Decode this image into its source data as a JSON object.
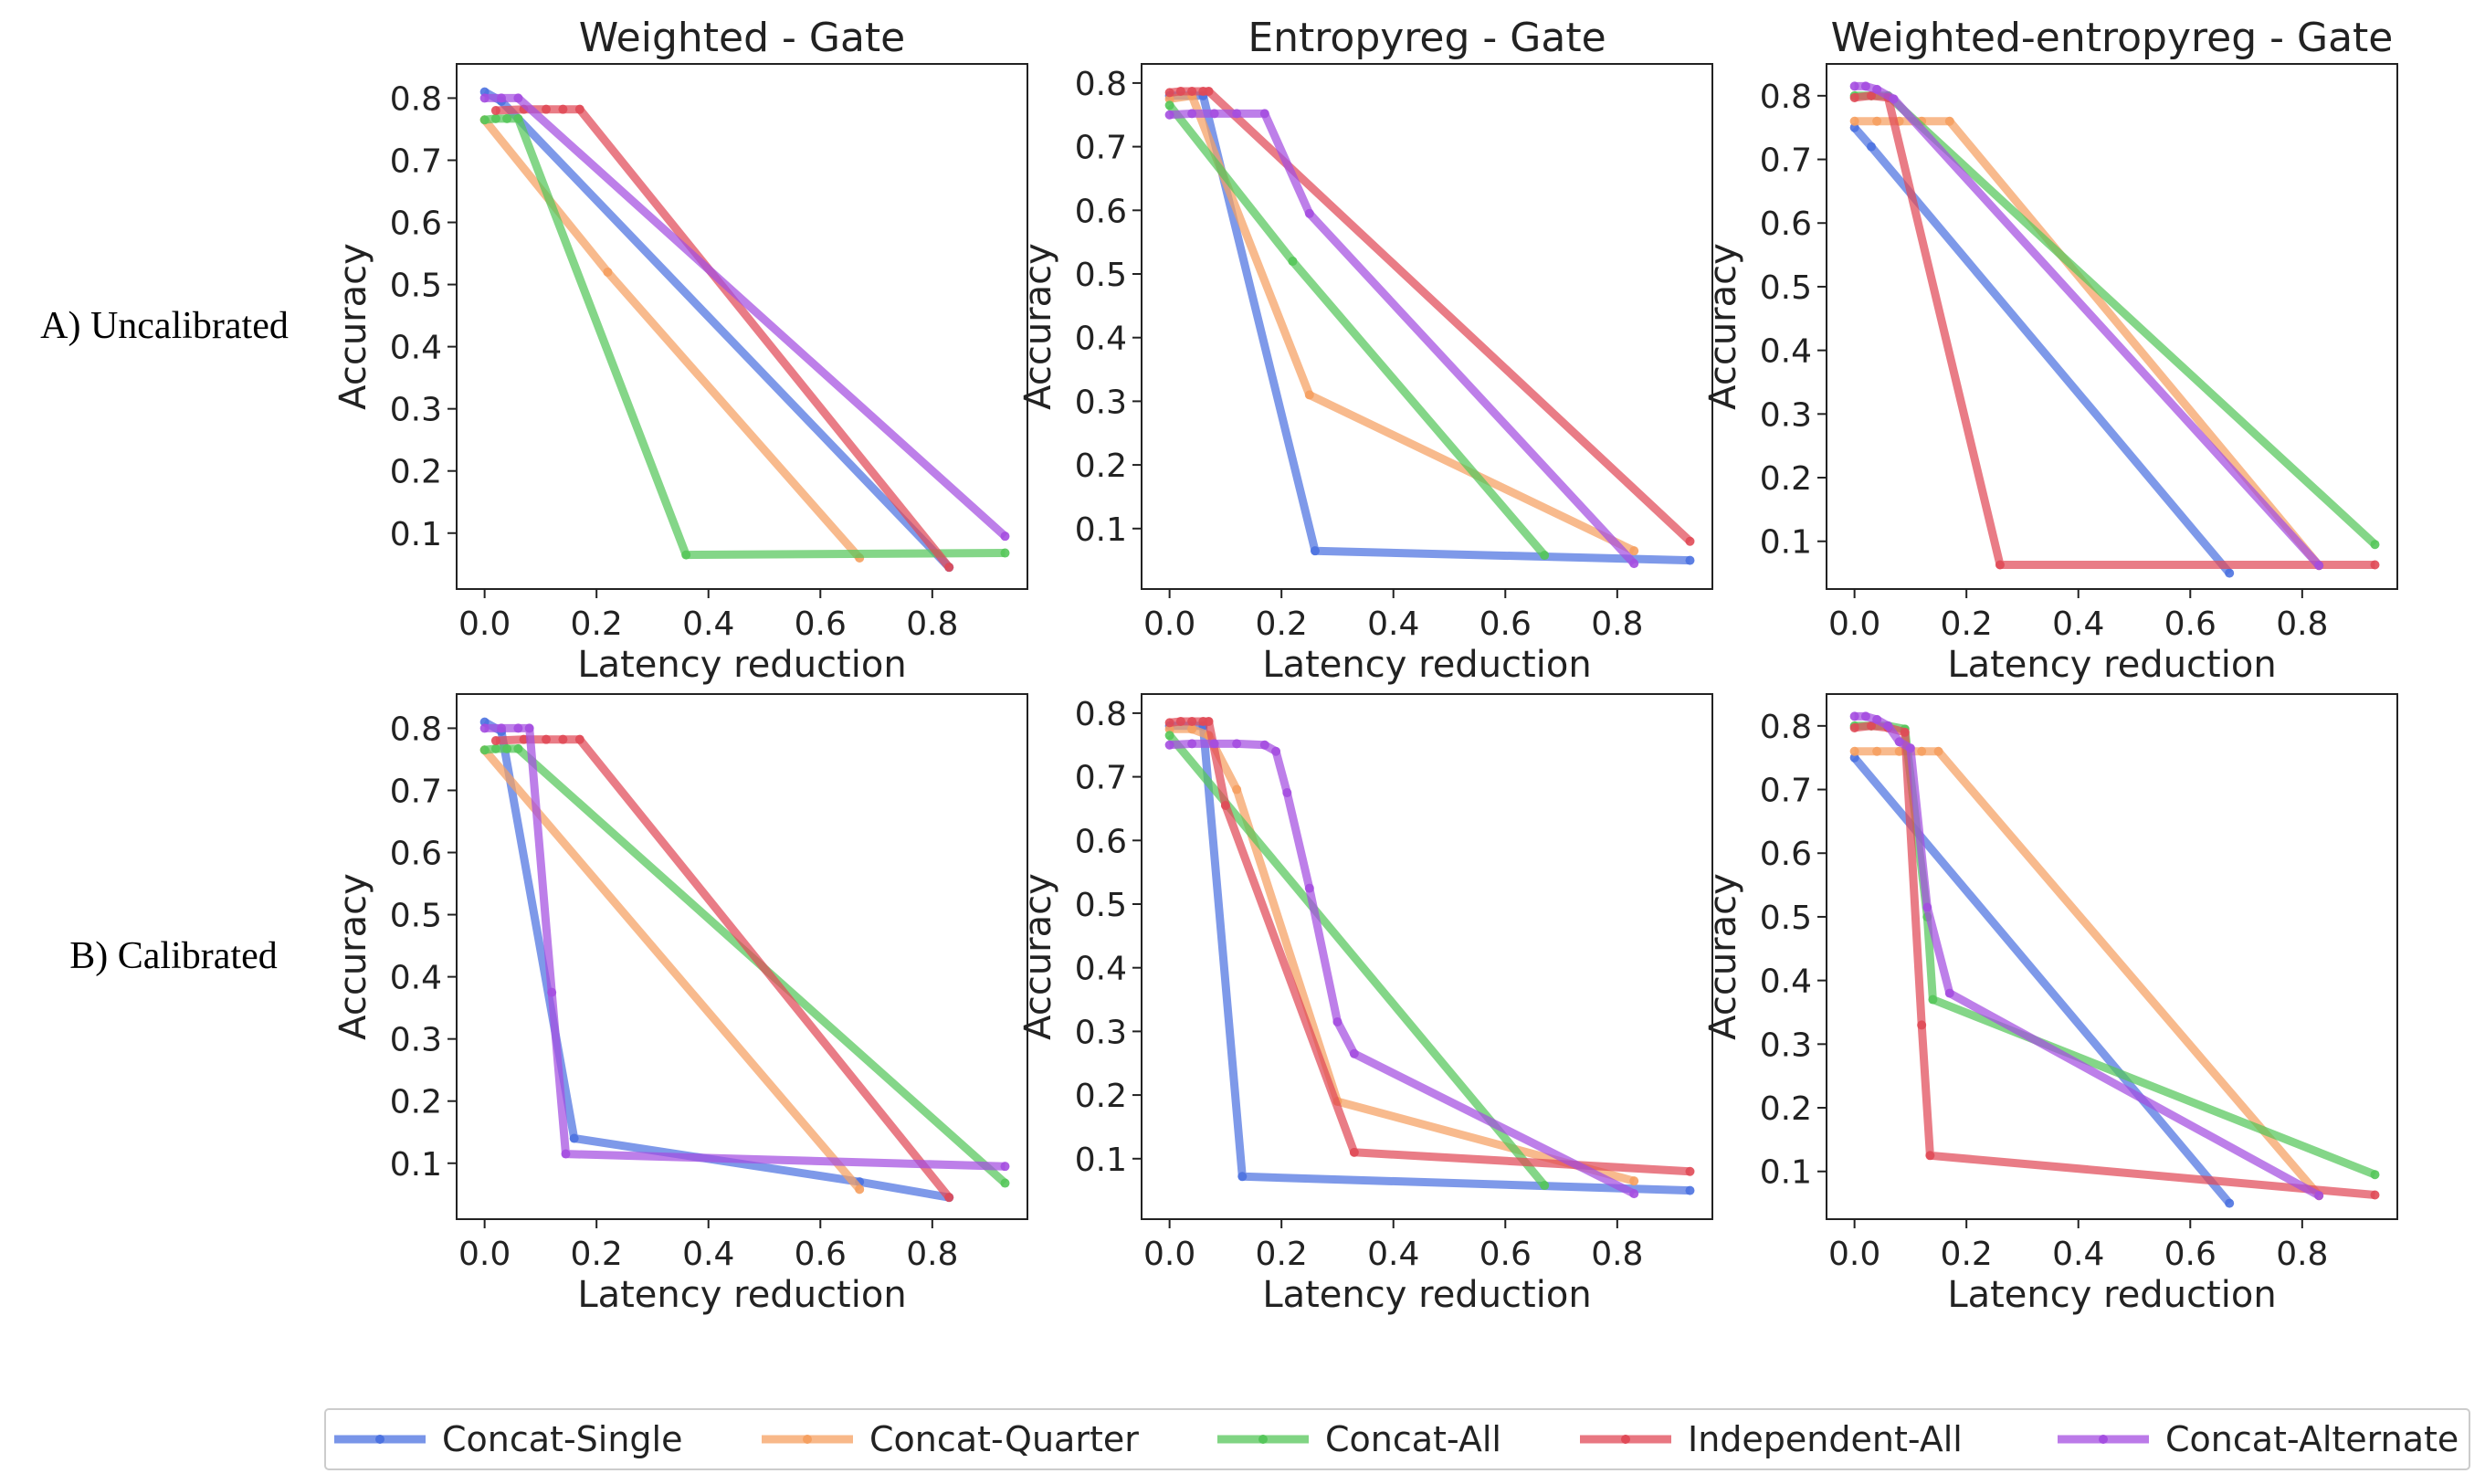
{
  "row_labels": [
    "A) Uncalibrated",
    "B) Calibrated"
  ],
  "legend": [
    {
      "name": "Concat-Single",
      "color": "#4c72e0"
    },
    {
      "name": "Concat-Quarter",
      "color": "#f5a061"
    },
    {
      "name": "Concat-All",
      "color": "#55c65a"
    },
    {
      "name": "Independent-All",
      "color": "#e04a57"
    },
    {
      "name": "Concat-Alternate",
      "color": "#a44ee0"
    }
  ],
  "chart_data": [
    {
      "type": "line",
      "row": 0,
      "col": 0,
      "title": "Weighted - Gate",
      "xlabel": "Latency reduction",
      "ylabel": "Accuracy",
      "xlim": [
        -0.05,
        0.97
      ],
      "ylim": [
        0.01,
        0.855
      ],
      "xticks": [
        "0.0",
        "0.2",
        "0.4",
        "0.6",
        "0.8"
      ],
      "yticks": [
        "0.1",
        "0.2",
        "0.3",
        "0.4",
        "0.5",
        "0.6",
        "0.7",
        "0.8"
      ],
      "series": [
        {
          "name": "Concat-Single",
          "x": [
            0.0,
            0.03,
            0.83
          ],
          "y": [
            0.81,
            0.795,
            0.045
          ]
        },
        {
          "name": "Concat-Quarter",
          "x": [
            0.0,
            0.22,
            0.67
          ],
          "y": [
            0.765,
            0.52,
            0.06
          ]
        },
        {
          "name": "Concat-All",
          "x": [
            0.0,
            0.02,
            0.04,
            0.06,
            0.36,
            0.93
          ],
          "y": [
            0.765,
            0.767,
            0.767,
            0.767,
            0.065,
            0.068
          ]
        },
        {
          "name": "Independent-All",
          "x": [
            0.02,
            0.07,
            0.11,
            0.14,
            0.17,
            0.83
          ],
          "y": [
            0.78,
            0.782,
            0.782,
            0.782,
            0.782,
            0.045
          ]
        },
        {
          "name": "Concat-Alternate",
          "x": [
            0.0,
            0.03,
            0.06,
            0.93
          ],
          "y": [
            0.8,
            0.8,
            0.8,
            0.095
          ]
        }
      ]
    },
    {
      "type": "line",
      "row": 0,
      "col": 1,
      "title": "Entropyreg - Gate",
      "xlabel": "Latency reduction",
      "ylabel": "Accuracy",
      "xlim": [
        -0.05,
        0.97
      ],
      "ylim": [
        0.005,
        0.83
      ],
      "xticks": [
        "0.0",
        "0.2",
        "0.4",
        "0.6",
        "0.8"
      ],
      "yticks": [
        "0.1",
        "0.2",
        "0.3",
        "0.4",
        "0.5",
        "0.6",
        "0.7",
        "0.8"
      ],
      "series": [
        {
          "name": "Concat-Single",
          "x": [
            0.0,
            0.06,
            0.26,
            0.93
          ],
          "y": [
            0.78,
            0.78,
            0.065,
            0.05
          ]
        },
        {
          "name": "Concat-Quarter",
          "x": [
            0.0,
            0.04,
            0.25,
            0.83
          ],
          "y": [
            0.775,
            0.78,
            0.31,
            0.065
          ]
        },
        {
          "name": "Concat-All",
          "x": [
            0.0,
            0.22,
            0.67
          ],
          "y": [
            0.765,
            0.52,
            0.058
          ]
        },
        {
          "name": "Independent-All",
          "x": [
            0.0,
            0.02,
            0.04,
            0.06,
            0.07,
            0.93
          ],
          "y": [
            0.785,
            0.787,
            0.787,
            0.787,
            0.787,
            0.08
          ]
        },
        {
          "name": "Concat-Alternate",
          "x": [
            0.0,
            0.04,
            0.08,
            0.12,
            0.17,
            0.25,
            0.83
          ],
          "y": [
            0.75,
            0.752,
            0.752,
            0.752,
            0.752,
            0.595,
            0.045
          ]
        }
      ]
    },
    {
      "type": "line",
      "row": 0,
      "col": 2,
      "title": "Weighted-entropyreg - Gate",
      "xlabel": "Latency reduction",
      "ylabel": "Accuracy",
      "xlim": [
        -0.05,
        0.97
      ],
      "ylim": [
        0.025,
        0.85
      ],
      "xticks": [
        "0.0",
        "0.2",
        "0.4",
        "0.6",
        "0.8"
      ],
      "yticks": [
        "0.1",
        "0.2",
        "0.3",
        "0.4",
        "0.5",
        "0.6",
        "0.7",
        "0.8"
      ],
      "series": [
        {
          "name": "Concat-Single",
          "x": [
            0.0,
            0.03,
            0.67
          ],
          "y": [
            0.75,
            0.72,
            0.05
          ]
        },
        {
          "name": "Concat-Quarter",
          "x": [
            0.0,
            0.04,
            0.08,
            0.12,
            0.17,
            0.83
          ],
          "y": [
            0.76,
            0.76,
            0.76,
            0.76,
            0.76,
            0.062
          ]
        },
        {
          "name": "Concat-All",
          "x": [
            0.0,
            0.03,
            0.06,
            0.93
          ],
          "y": [
            0.8,
            0.8,
            0.8,
            0.095
          ]
        },
        {
          "name": "Independent-All",
          "x": [
            0.0,
            0.03,
            0.06,
            0.26,
            0.93
          ],
          "y": [
            0.797,
            0.8,
            0.797,
            0.063,
            0.063
          ]
        },
        {
          "name": "Concat-Alternate",
          "x": [
            0.0,
            0.02,
            0.04,
            0.07,
            0.83
          ],
          "y": [
            0.815,
            0.815,
            0.81,
            0.795,
            0.062
          ]
        }
      ]
    },
    {
      "type": "line",
      "row": 1,
      "col": 0,
      "title": "",
      "xlabel": "Latency reduction",
      "ylabel": "Accuracy",
      "xlim": [
        -0.05,
        0.97
      ],
      "ylim": [
        0.01,
        0.855
      ],
      "xticks": [
        "0.0",
        "0.2",
        "0.4",
        "0.6",
        "0.8"
      ],
      "yticks": [
        "0.1",
        "0.2",
        "0.3",
        "0.4",
        "0.5",
        "0.6",
        "0.7",
        "0.8"
      ],
      "series": [
        {
          "name": "Concat-Single",
          "x": [
            0.0,
            0.03,
            0.16,
            0.67,
            0.83
          ],
          "y": [
            0.81,
            0.795,
            0.14,
            0.07,
            0.045
          ]
        },
        {
          "name": "Concat-Quarter",
          "x": [
            0.0,
            0.67
          ],
          "y": [
            0.765,
            0.058
          ]
        },
        {
          "name": "Concat-All",
          "x": [
            0.0,
            0.02,
            0.04,
            0.06,
            0.93
          ],
          "y": [
            0.765,
            0.767,
            0.767,
            0.767,
            0.068
          ]
        },
        {
          "name": "Independent-All",
          "x": [
            0.02,
            0.07,
            0.11,
            0.14,
            0.17,
            0.83
          ],
          "y": [
            0.78,
            0.782,
            0.782,
            0.782,
            0.782,
            0.045
          ]
        },
        {
          "name": "Concat-Alternate",
          "x": [
            0.0,
            0.03,
            0.06,
            0.08,
            0.12,
            0.145,
            0.93
          ],
          "y": [
            0.8,
            0.8,
            0.8,
            0.8,
            0.375,
            0.115,
            0.095
          ]
        }
      ]
    },
    {
      "type": "line",
      "row": 1,
      "col": 1,
      "title": "",
      "xlabel": "Latency reduction",
      "ylabel": "Accuracy",
      "xlim": [
        -0.05,
        0.97
      ],
      "ylim": [
        0.005,
        0.83
      ],
      "xticks": [
        "0.0",
        "0.2",
        "0.4",
        "0.6",
        "0.8"
      ],
      "yticks": [
        "0.1",
        "0.2",
        "0.3",
        "0.4",
        "0.5",
        "0.6",
        "0.7",
        "0.8"
      ],
      "series": [
        {
          "name": "Concat-Single",
          "x": [
            0.0,
            0.06,
            0.13,
            0.93
          ],
          "y": [
            0.78,
            0.78,
            0.072,
            0.05
          ]
        },
        {
          "name": "Concat-Quarter",
          "x": [
            0.0,
            0.04,
            0.07,
            0.12,
            0.3,
            0.83
          ],
          "y": [
            0.775,
            0.775,
            0.765,
            0.68,
            0.19,
            0.065
          ]
        },
        {
          "name": "Concat-All",
          "x": [
            0.0,
            0.67
          ],
          "y": [
            0.765,
            0.058
          ]
        },
        {
          "name": "Independent-All",
          "x": [
            0.0,
            0.02,
            0.04,
            0.06,
            0.07,
            0.1,
            0.33,
            0.93
          ],
          "y": [
            0.785,
            0.787,
            0.787,
            0.787,
            0.787,
            0.655,
            0.11,
            0.08
          ]
        },
        {
          "name": "Concat-Alternate",
          "x": [
            0.0,
            0.04,
            0.08,
            0.12,
            0.17,
            0.19,
            0.21,
            0.25,
            0.3,
            0.33,
            0.83
          ],
          "y": [
            0.75,
            0.752,
            0.752,
            0.752,
            0.75,
            0.74,
            0.675,
            0.525,
            0.315,
            0.265,
            0.045
          ]
        }
      ]
    },
    {
      "type": "line",
      "row": 1,
      "col": 2,
      "title": "",
      "xlabel": "Latency reduction",
      "ylabel": "Accuracy",
      "xlim": [
        -0.05,
        0.97
      ],
      "ylim": [
        0.025,
        0.85
      ],
      "xticks": [
        "0.0",
        "0.2",
        "0.4",
        "0.6",
        "0.8"
      ],
      "yticks": [
        "0.1",
        "0.2",
        "0.3",
        "0.4",
        "0.5",
        "0.6",
        "0.7",
        "0.8"
      ],
      "series": [
        {
          "name": "Concat-Single",
          "x": [
            0.0,
            0.67
          ],
          "y": [
            0.75,
            0.05
          ]
        },
        {
          "name": "Concat-Quarter",
          "x": [
            0.0,
            0.04,
            0.08,
            0.12,
            0.15,
            0.83
          ],
          "y": [
            0.76,
            0.76,
            0.76,
            0.76,
            0.76,
            0.062
          ]
        },
        {
          "name": "Concat-All",
          "x": [
            0.0,
            0.03,
            0.06,
            0.09,
            0.13,
            0.14,
            0.93
          ],
          "y": [
            0.8,
            0.8,
            0.8,
            0.795,
            0.5,
            0.37,
            0.095
          ]
        },
        {
          "name": "Independent-All",
          "x": [
            0.0,
            0.03,
            0.06,
            0.09,
            0.12,
            0.135,
            0.93
          ],
          "y": [
            0.797,
            0.8,
            0.797,
            0.79,
            0.33,
            0.125,
            0.063
          ]
        },
        {
          "name": "Concat-Alternate",
          "x": [
            0.0,
            0.02,
            0.04,
            0.06,
            0.08,
            0.1,
            0.13,
            0.17,
            0.83
          ],
          "y": [
            0.815,
            0.815,
            0.81,
            0.8,
            0.775,
            0.765,
            0.515,
            0.38,
            0.062
          ]
        }
      ]
    }
  ]
}
